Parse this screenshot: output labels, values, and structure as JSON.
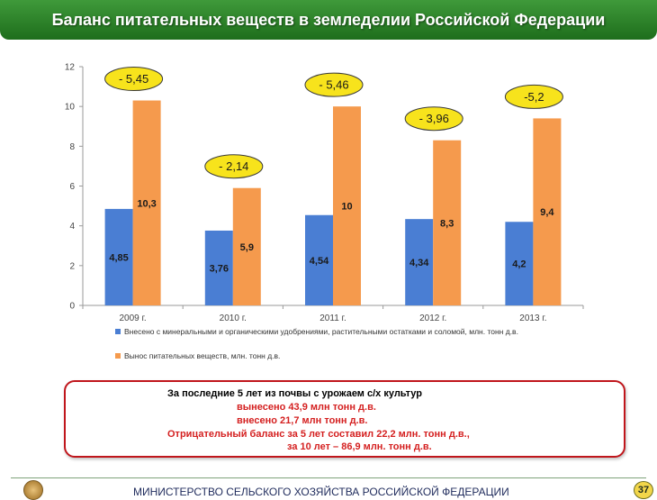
{
  "header": {
    "title": "Баланс питательных веществ в земледелии Российской Федерации"
  },
  "chart_data": {
    "type": "bar",
    "categories": [
      "2009 г.",
      "2010 г.",
      "2011 г.",
      "2012 г.",
      "2013 г."
    ],
    "series": [
      {
        "name": "Внесено с минеральными и органическими удобрениями, растительными остатками и соломой, млн. тонн д.в.",
        "values": [
          4.85,
          3.76,
          4.54,
          4.34,
          4.2
        ],
        "labels": [
          "4,85",
          "3,76",
          "4,54",
          "4,34",
          "4,2"
        ],
        "color": "#4a7ed3"
      },
      {
        "name": "Вынос питательных веществ, млн. тонн д.в.",
        "values": [
          10.3,
          5.9,
          10,
          8.3,
          9.4
        ],
        "labels": [
          "10,3",
          "5,9",
          "10",
          "8,3",
          "9,4"
        ],
        "color": "#f59a4d"
      }
    ],
    "balance_labels": [
      "- 5,45",
      "- 2,14",
      "- 5,46",
      "- 3,96",
      "-5,2"
    ],
    "ylim": [
      0,
      12
    ],
    "yticks": [
      0,
      2,
      4,
      6,
      8,
      10,
      12
    ],
    "grid": false,
    "legend": "bottom",
    "balance_oval_color": "#f7e31c"
  },
  "summary": {
    "heading": "За последние 5 лет из почвы с урожаем с/х культур",
    "removed": "вынесено  43,9  млн тонн  д.в.",
    "added": "внесено 21,7  млн тонн  д.в.",
    "negative_balance": "Отрицательный баланс за 5 лет составил  22,2  млн. тонн  д.в.,",
    "ten_years": "за 10 лет – 86,9 млн. тонн д.в."
  },
  "footer": {
    "ministry": "МИНИСТЕРСТВО СЕЛЬСКОГО ХОЗЯЙСТВА РОССИЙСКОЙ ФЕДЕРАЦИИ",
    "page": "37"
  }
}
